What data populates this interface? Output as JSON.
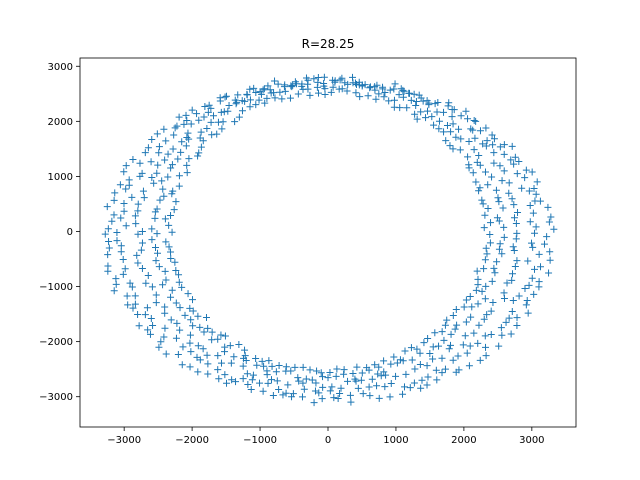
{
  "chart_data": {
    "type": "scatter",
    "title": "R=28.25",
    "xlabel": "",
    "ylabel": "",
    "xlim": [
      -3650,
      3650
    ],
    "ylim": [
      -3550,
      3150
    ],
    "xticks": [
      -3000,
      -2000,
      -1000,
      0,
      1000,
      2000,
      3000
    ],
    "yticks": [
      -3000,
      -2000,
      -1000,
      0,
      1000,
      2000,
      3000
    ],
    "xtick_labels": [
      "−3000",
      "−2000",
      "−1000",
      "0",
      "1000",
      "2000",
      "3000"
    ],
    "ytick_labels": [
      "−3000",
      "−2000",
      "−1000",
      "0",
      "1000",
      "2000",
      "3000"
    ],
    "grid": false,
    "legend": "none",
    "marker": "+",
    "series": [
      {
        "color": "#1f77b4",
        "rings": [
          {
            "rx": 3250,
            "ry": 2900,
            "cx": 0,
            "cy": -150,
            "points": 140
          },
          {
            "rx": 3050,
            "ry": 2850,
            "cx": 0,
            "cy": -100,
            "points": 140
          },
          {
            "rx": 2800,
            "ry": 2750,
            "cx": 0,
            "cy": -50,
            "points": 140
          },
          {
            "rx": 2550,
            "ry": 2650,
            "cx": 0,
            "cy": 0,
            "points": 140
          },
          {
            "rx": 2350,
            "ry": 2550,
            "cx": 0,
            "cy": 0,
            "points": 140
          }
        ],
        "extremes": {
          "x_min": -3300,
          "x_max": 3280,
          "y_min": -3200,
          "y_max": 3030
        }
      }
    ]
  }
}
